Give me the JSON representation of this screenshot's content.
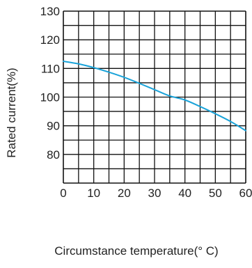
{
  "chart_data": {
    "type": "line",
    "title": "",
    "xlabel": "Circumstance temperature(° C)",
    "ylabel": "Rated current(%)",
    "xlim": [
      0,
      60
    ],
    "ylim": [
      70,
      130
    ],
    "x_ticks": [
      0,
      10,
      20,
      30,
      40,
      50,
      60
    ],
    "y_ticks": [
      80,
      90,
      100,
      110,
      120,
      130
    ],
    "x_minor_step": 5,
    "y_minor_step": 5,
    "grid": true,
    "colors": {
      "grid": "#111111",
      "series": "#1aa3d9"
    },
    "series": [
      {
        "x": [
          0,
          5,
          10,
          15,
          20,
          25,
          30,
          35,
          40,
          45,
          50,
          55,
          60
        ],
        "y": [
          112.5,
          111.6,
          110.3,
          108.7,
          106.9,
          104.8,
          102.6,
          100.4,
          99.0,
          96.7,
          94.2,
          91.5,
          88.3
        ]
      }
    ]
  }
}
